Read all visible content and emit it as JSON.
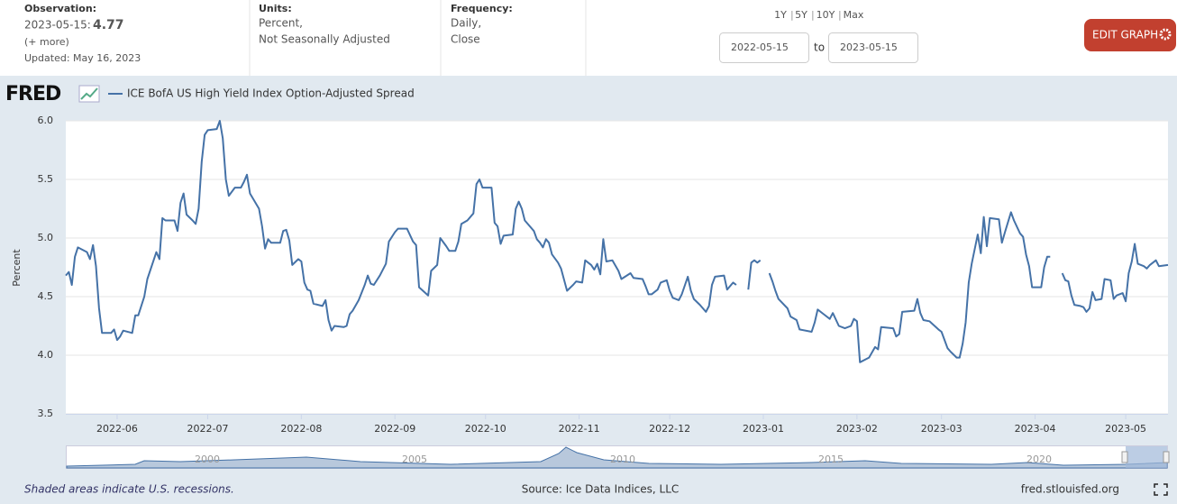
{
  "header": {
    "observation": {
      "label": "Observation:",
      "date": "2023-05-15:",
      "value": 4.77,
      "more": "(+ more)",
      "updated": "Updated: May 16, 2023"
    },
    "units": {
      "label": "Units:",
      "lines": [
        "Percent,",
        "Not Seasonally Adjusted"
      ]
    },
    "frequency": {
      "label": "Frequency:",
      "lines": [
        "Daily,",
        "Close"
      ]
    },
    "ranges": [
      "1Y",
      "5Y",
      "10Y",
      "Max"
    ],
    "date_from": "2022-05-15",
    "to": "to",
    "date_to": "2023-05-15",
    "edit": "EDIT GRAPH"
  },
  "logo": "FRED",
  "chart_data": {
    "type": "line",
    "ylabel": "Percent",
    "xlim": [
      "2022-05-15",
      "2023-05-15"
    ],
    "ylim": [
      3.5,
      6.0
    ],
    "yticks": [
      3.5,
      {
        "value": 4,
        "label": "4.0"
      },
      4.5,
      {
        "value": 5,
        "label": "5.0"
      },
      5.5,
      {
        "value": 6,
        "label": "6.0"
      }
    ],
    "xticks": [
      "2022-06",
      "2022-07",
      "2022-08",
      "2022-09",
      "2022-10",
      "2022-11",
      "2022-12",
      "2023-01",
      "2023-02",
      "2023-03",
      "2023-04",
      "2023-05"
    ],
    "grid": true,
    "x": [
      "2022-05-15",
      "2022-05-16",
      "2022-05-17",
      "2022-05-18",
      "2022-05-19",
      "2022-05-22",
      "2022-05-23",
      "2022-05-24",
      "2022-05-25",
      "2022-05-26",
      "2022-05-27",
      "2022-05-30",
      "2022-05-31",
      "2022-06-01",
      "2022-06-02",
      "2022-06-03",
      "2022-06-06",
      "2022-06-07",
      "2022-06-08",
      "2022-06-10",
      "2022-06-11",
      "2022-06-14",
      "2022-06-15",
      "2022-06-16",
      "2022-06-17",
      "2022-06-20",
      "2022-06-21",
      "2022-06-22",
      "2022-06-23",
      "2022-06-24",
      "2022-06-26",
      "2022-06-27",
      "2022-06-28",
      "2022-06-29",
      "2022-06-30",
      "2022-07-01",
      "2022-07-04",
      "2022-07-05",
      "2022-07-06",
      "2022-07-07",
      "2022-07-08",
      "2022-07-10",
      "2022-07-12",
      "2022-07-13",
      "2022-07-14",
      "2022-07-15",
      "2022-07-18",
      "2022-07-19",
      "2022-07-20",
      "2022-07-21",
      "2022-07-22",
      "2022-07-25",
      "2022-07-26",
      "2022-07-27",
      "2022-07-28",
      "2022-07-29",
      "2022-07-31",
      "2022-08-01",
      "2022-08-02",
      "2022-08-03",
      "2022-08-04",
      "2022-08-05",
      "2022-08-08",
      "2022-08-09",
      "2022-08-10",
      "2022-08-11",
      "2022-08-12",
      "2022-08-15",
      "2022-08-16",
      "2022-08-17",
      "2022-08-18",
      "2022-08-20",
      "2022-08-22",
      "2022-08-23",
      "2022-08-24",
      "2022-08-25",
      "2022-08-27",
      "2022-08-29",
      "2022-08-30",
      "2022-09-01",
      "2022-09-02",
      "2022-09-05",
      "2022-09-07",
      "2022-09-08",
      "2022-09-09",
      "2022-09-12",
      "2022-09-13",
      "2022-09-15",
      "2022-09-16",
      "2022-09-18",
      "2022-09-19",
      "2022-09-21",
      "2022-09-22",
      "2022-09-23",
      "2022-09-25",
      "2022-09-27",
      "2022-09-28",
      "2022-09-29",
      "2022-09-30",
      "2022-10-03",
      "2022-10-04",
      "2022-10-05",
      "2022-10-06",
      "2022-10-07",
      "2022-10-10",
      "2022-10-11",
      "2022-10-12",
      "2022-10-13",
      "2022-10-14",
      "2022-10-17",
      "2022-10-18",
      "2022-10-19",
      "2022-10-20",
      "2022-10-21",
      "2022-10-22",
      "2022-10-23",
      "2022-10-25",
      "2022-10-26",
      "2022-10-28",
      "2022-10-30",
      "2022-10-31",
      "2022-11-02",
      "2022-11-03",
      "2022-11-05",
      "2022-11-06",
      "2022-11-07",
      "2022-11-08",
      "2022-11-09",
      "2022-11-10",
      "2022-11-12",
      "2022-11-14",
      "2022-11-15",
      "2022-11-18",
      "2022-11-19",
      "2022-11-22",
      "2022-11-23",
      "2022-11-24",
      "2022-11-25",
      "2022-11-27",
      "2022-11-28",
      "2022-11-30",
      "2022-12-01",
      "2022-12-02",
      "2022-12-04",
      "2022-12-05",
      "2022-12-07",
      "2022-12-08",
      "2022-12-09",
      "2022-12-11",
      "2022-12-13",
      "2022-12-14",
      "2022-12-15",
      "2022-12-16",
      "2022-12-19",
      "2022-12-20",
      "2022-12-22",
      "2022-12-23",
      "2022-12-26",
      "2022-12-27",
      "2022-12-28",
      "2022-12-29",
      "2022-12-30",
      "2022-12-31",
      "2023-01-02",
      "2023-01-03",
      "2023-01-04",
      "2023-01-05",
      "2023-01-06",
      "2023-01-09",
      "2023-01-10",
      "2023-01-12",
      "2023-01-13",
      "2023-01-17",
      "2023-01-18",
      "2023-01-19",
      "2023-01-21",
      "2023-01-23",
      "2023-01-24",
      "2023-01-26",
      "2023-01-28",
      "2023-01-30",
      "2023-01-31",
      "2023-02-01",
      "2023-02-02",
      "2023-02-05",
      "2023-02-07",
      "2023-02-08",
      "2023-02-09",
      "2023-02-13",
      "2023-02-14",
      "2023-02-15",
      "2023-02-16",
      "2023-02-20",
      "2023-02-21",
      "2023-02-22",
      "2023-02-23",
      "2023-02-25",
      "2023-02-28",
      "2023-03-01",
      "2023-03-03",
      "2023-03-04",
      "2023-03-06",
      "2023-03-07",
      "2023-03-08",
      "2023-03-09",
      "2023-03-10",
      "2023-03-11",
      "2023-03-13",
      "2023-03-14",
      "2023-03-15",
      "2023-03-16",
      "2023-03-17",
      "2023-03-20",
      "2023-03-21",
      "2023-03-22",
      "2023-03-24",
      "2023-03-25",
      "2023-03-27",
      "2023-03-28",
      "2023-03-29",
      "2023-03-30",
      "2023-03-31",
      "2023-04-03",
      "2023-04-04",
      "2023-04-05",
      "2023-04-06",
      "2023-04-07",
      "2023-04-10",
      "2023-04-11",
      "2023-04-12",
      "2023-04-13",
      "2023-04-14",
      "2023-04-16",
      "2023-04-17",
      "2023-04-18",
      "2023-04-19",
      "2023-04-20",
      "2023-04-21",
      "2023-04-23",
      "2023-04-24",
      "2023-04-26",
      "2023-04-27",
      "2023-04-28",
      "2023-04-30",
      "2023-05-01",
      "2023-05-02",
      "2023-05-03",
      "2023-05-04",
      "2023-05-05",
      "2023-05-07",
      "2023-05-08",
      "2023-05-09",
      "2023-05-11",
      "2023-05-12",
      "2023-05-15"
    ],
    "series": [
      {
        "name": "ICE BofA US High Yield Index Option-Adjusted Spread",
        "color": "#4572a7",
        "values": [
          4.68,
          4.71,
          4.6,
          4.84,
          4.92,
          4.88,
          4.82,
          4.94,
          4.76,
          4.4,
          4.19,
          4.19,
          4.22,
          4.13,
          4.16,
          4.21,
          4.19,
          4.34,
          4.34,
          4.5,
          4.65,
          4.88,
          4.82,
          5.17,
          5.15,
          5.15,
          5.06,
          5.3,
          5.38,
          5.2,
          5.15,
          5.12,
          5.25,
          5.65,
          5.88,
          5.92,
          5.93,
          6.0,
          5.85,
          5.5,
          5.36,
          5.43,
          5.43,
          5.48,
          5.54,
          5.38,
          5.25,
          5.1,
          4.91,
          4.99,
          4.96,
          4.96,
          5.06,
          5.07,
          4.98,
          4.77,
          4.82,
          4.8,
          4.62,
          4.56,
          4.55,
          4.44,
          4.42,
          4.47,
          4.3,
          4.21,
          4.25,
          4.24,
          4.25,
          4.35,
          4.38,
          4.47,
          4.6,
          4.68,
          4.61,
          4.6,
          4.68,
          4.78,
          4.97,
          5.05,
          5.08,
          5.08,
          4.97,
          4.94,
          4.58,
          4.51,
          4.72,
          4.77,
          5.0,
          4.93,
          4.89,
          4.89,
          4.97,
          5.12,
          5.15,
          5.21,
          5.46,
          5.5,
          5.43,
          5.43,
          5.13,
          5.1,
          4.95,
          5.02,
          5.03,
          5.25,
          5.31,
          5.25,
          5.15,
          5.06,
          4.99,
          4.96,
          4.92,
          4.99,
          4.96,
          4.86,
          4.79,
          4.74,
          4.55,
          4.6,
          4.63,
          4.62,
          4.81,
          4.77,
          4.73,
          4.78,
          4.69,
          4.99,
          4.8,
          4.81,
          4.72,
          4.65,
          4.7,
          4.66,
          4.65,
          4.59,
          4.52,
          4.52,
          4.56,
          4.62,
          4.64,
          4.55,
          4.49,
          4.47,
          4.52,
          4.67,
          4.55,
          4.48,
          4.43,
          4.37,
          4.42,
          4.6,
          4.67,
          4.68,
          4.56,
          4.62,
          4.6,
          null,
          4.56,
          4.79,
          4.81,
          4.79,
          4.81,
          null,
          4.7,
          4.63,
          4.55,
          4.48,
          4.4,
          4.33,
          4.3,
          4.22,
          4.2,
          4.28,
          4.39,
          4.35,
          4.31,
          4.36,
          4.25,
          4.23,
          4.25,
          4.31,
          4.29,
          3.94,
          3.98,
          4.07,
          4.05,
          4.24,
          4.23,
          4.16,
          4.18,
          4.37,
          4.38,
          4.48,
          4.36,
          4.3,
          4.29,
          4.22,
          4.2,
          4.06,
          4.03,
          3.98,
          3.98,
          4.1,
          4.28,
          4.62,
          4.78,
          5.03,
          4.87,
          5.18,
          4.93,
          5.17,
          5.16,
          4.96,
          5.05,
          5.22,
          5.15,
          5.04,
          5.01,
          4.86,
          4.76,
          4.58,
          4.58,
          4.75,
          4.84,
          4.84,
          null,
          4.7,
          4.64,
          4.63,
          4.51,
          4.43,
          4.42,
          4.41,
          4.37,
          4.4,
          4.54,
          4.47,
          4.48,
          4.65,
          4.64,
          4.48,
          4.51,
          4.53,
          4.46,
          4.7,
          4.8,
          4.95,
          4.78,
          4.76,
          4.74,
          4.77,
          4.81,
          4.76,
          4.77
        ]
      }
    ]
  },
  "navigator": {
    "labels": [
      "2000",
      "2005",
      "2010",
      "2015",
      "2020"
    ]
  },
  "footer": {
    "note": "Shaded areas indicate U.S. recessions.",
    "source": "Source: Ice Data Indices, LLC",
    "site": "fred.stlouisfed.org"
  }
}
